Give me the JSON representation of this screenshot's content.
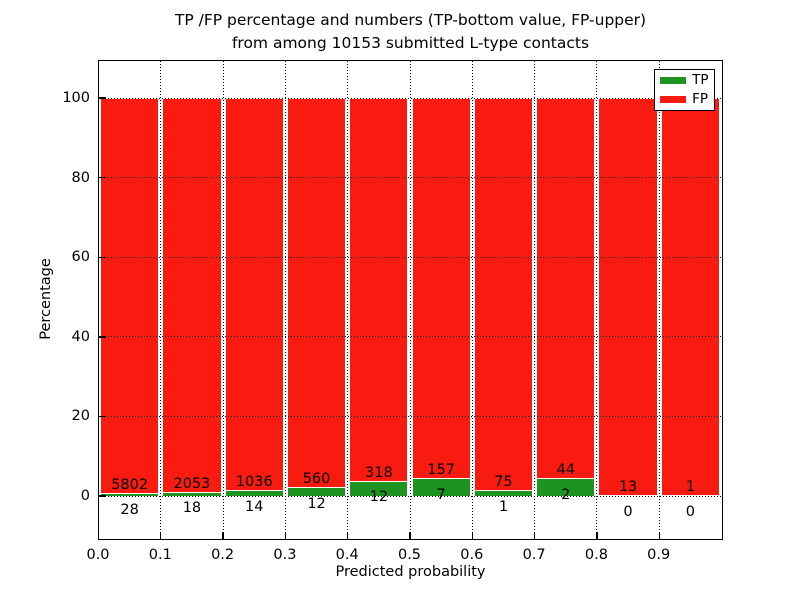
{
  "chart_data": {
    "type": "bar",
    "stacked": true,
    "percent_stacked": true,
    "title_line1": "TP /FP percentage and numbers (TP-bottom value, FP-upper)",
    "title_line2": "from among 10153 submitted L-type contacts",
    "total_submitted": 10153,
    "xlabel": "Predicted probability",
    "ylabel": "Percentage",
    "bin_edges": [
      0.0,
      0.1,
      0.2,
      0.3,
      0.4,
      0.5,
      0.6,
      0.7,
      0.8,
      0.9,
      1.0
    ],
    "xticks": [
      "0.0",
      "0.1",
      "0.2",
      "0.3",
      "0.4",
      "0.5",
      "0.6",
      "0.7",
      "0.8",
      "0.9"
    ],
    "yticks": [
      0,
      20,
      40,
      60,
      80,
      100
    ],
    "xlim": [
      0.0,
      1.0
    ],
    "ylim": [
      -10.8,
      109.3
    ],
    "grid_style": "dotted",
    "legend_position": "upper right",
    "series": [
      {
        "name": "TP",
        "color": "#1f9320",
        "counts": [
          28,
          18,
          14,
          12,
          12,
          7,
          1,
          2,
          0,
          0
        ]
      },
      {
        "name": "FP",
        "color": "#fa1b10",
        "counts": [
          5802,
          2053,
          1036,
          560,
          318,
          157,
          75,
          44,
          13,
          1
        ]
      }
    ],
    "tp_percent_of_bin": [
      0.48,
      0.87,
      1.33,
      2.1,
      3.64,
      4.27,
      1.32,
      4.35,
      0.0,
      0.0
    ]
  }
}
